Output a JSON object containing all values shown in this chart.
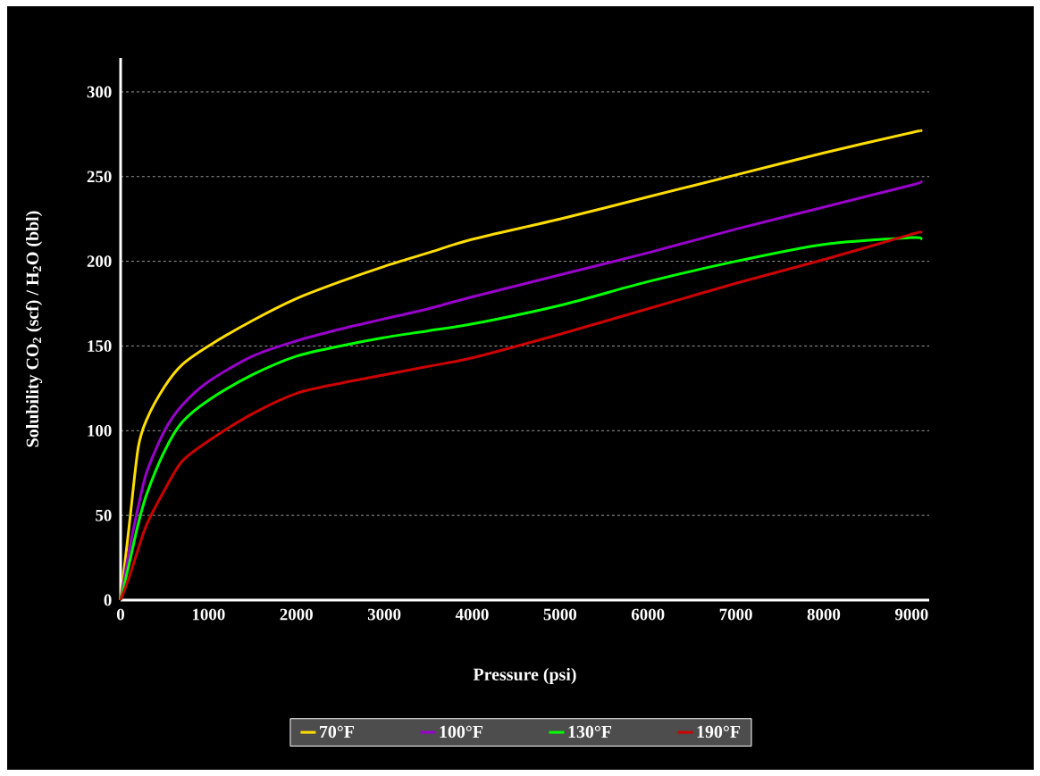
{
  "chart_data": {
    "type": "line",
    "xlabel": "Pressure (psi)",
    "ylabel": "Solubility CO$_{2}$ (scf) / H$_{2}$O (bbl)",
    "x": [
      0,
      100,
      200,
      300,
      500,
      700,
      1000,
      1500,
      2000,
      2500,
      3000,
      3500,
      4000,
      5000,
      6000,
      7000,
      8000,
      9000,
      9100
    ],
    "series": [
      {
        "name": "70°F",
        "color": "#ffdd00",
        "values": [
          0,
          45,
          90,
          107,
          126,
          139,
          150,
          165,
          178,
          188,
          197,
          205,
          213,
          225,
          238,
          251,
          264,
          276,
          277
        ]
      },
      {
        "name": "100°F",
        "color": "#9900cc",
        "values": [
          0,
          30,
          55,
          76,
          100,
          115,
          129,
          144,
          153,
          160,
          166,
          172,
          179,
          192,
          205,
          219,
          232,
          245,
          247
        ]
      },
      {
        "name": "130°F",
        "color": "#00ff00",
        "values": [
          0,
          22,
          45,
          63,
          88,
          105,
          118,
          133,
          144,
          150,
          155,
          159,
          163,
          174,
          188,
          200,
          210,
          214,
          213
        ]
      },
      {
        "name": "190°F",
        "color": "#cc0000",
        "values": [
          0,
          14,
          30,
          45,
          65,
          82,
          94,
          110,
          122,
          128,
          133,
          138,
          143,
          157,
          172,
          187,
          201,
          216,
          217
        ]
      }
    ],
    "xlim": [
      0,
      9200
    ],
    "ylim": [
      0,
      320
    ],
    "xticks": [
      0,
      1000,
      2000,
      3000,
      4000,
      5000,
      6000,
      7000,
      8000,
      9000
    ],
    "yticks": [
      0,
      50,
      100,
      150,
      200,
      250,
      300
    ],
    "grid": "y",
    "legend": "bottom",
    "marker": "none",
    "line_style": "solid"
  }
}
